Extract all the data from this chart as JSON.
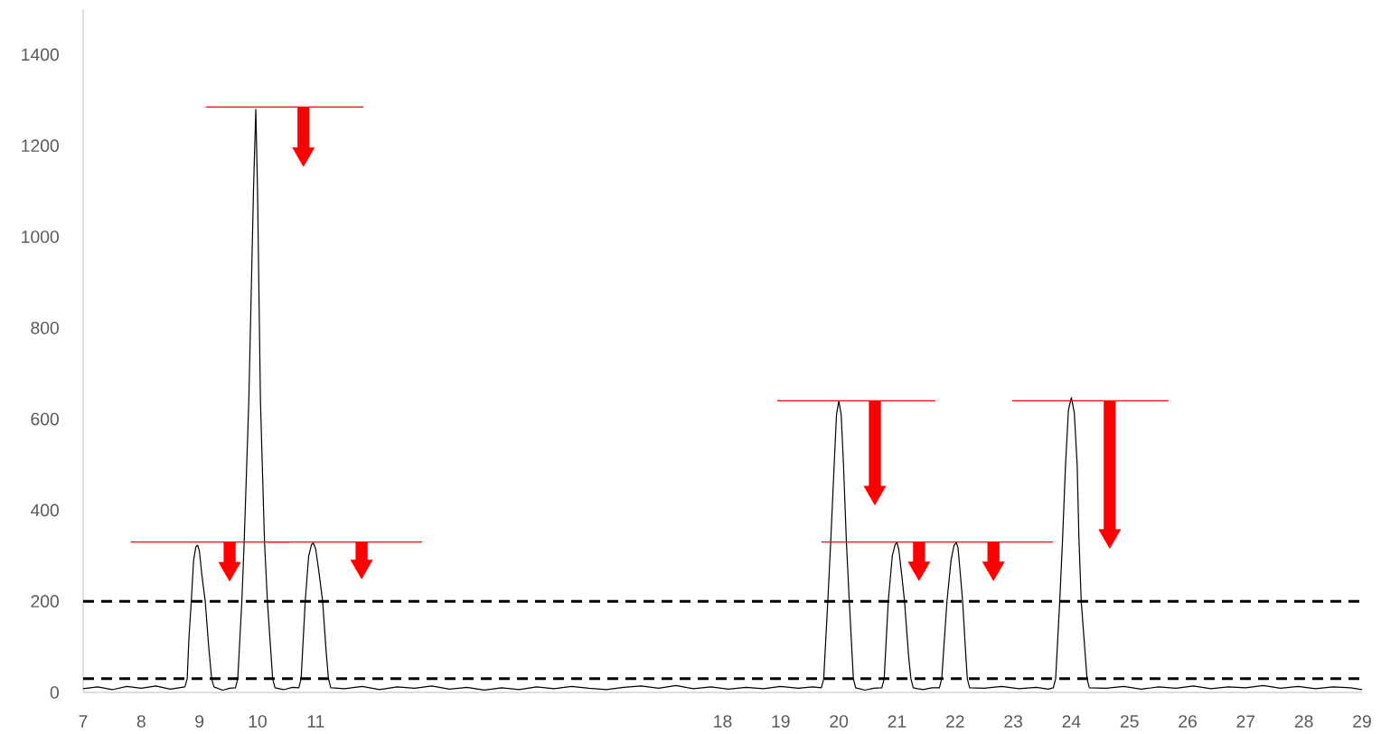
{
  "chart_data": {
    "type": "line",
    "xlim": [
      7,
      29
    ],
    "xticks": [
      7,
      8,
      9,
      10,
      11,
      18,
      19,
      20,
      21,
      22,
      23,
      24,
      25,
      26,
      27,
      28,
      29
    ],
    "ylim": [
      0,
      1500
    ],
    "yticks": [
      0,
      200,
      400,
      600,
      800,
      1000,
      1200,
      1400
    ],
    "marker": "none",
    "line_style": "solid",
    "ref_lines": [
      {
        "axis": "y",
        "value": 200,
        "color": "#000000",
        "line_style": "dashed"
      },
      {
        "axis": "y",
        "value": 30,
        "color": "#000000",
        "line_style": "dashed"
      }
    ],
    "series": [
      {
        "color": "#000000",
        "x": [
          7.0,
          7.25,
          7.5,
          7.75,
          8.0,
          8.25,
          8.5,
          8.75,
          8.79,
          8.82,
          8.86,
          8.9,
          8.94,
          8.97,
          9.0,
          9.04,
          9.1,
          9.16,
          9.21,
          9.25,
          9.4,
          9.52,
          9.62,
          9.66,
          9.73,
          9.77,
          9.85,
          9.93,
          9.97,
          10.0,
          10.05,
          10.12,
          10.17,
          10.26,
          10.3,
          10.45,
          10.6,
          10.71,
          10.75,
          10.82,
          10.88,
          10.93,
          10.96,
          11.0,
          11.05,
          11.12,
          11.18,
          11.22,
          11.26,
          11.5,
          11.8,
          12.1,
          12.4,
          12.7,
          13.0,
          13.3,
          13.6,
          13.9,
          14.2,
          14.5,
          14.8,
          15.1,
          15.4,
          15.7,
          16.0,
          16.3,
          16.6,
          16.9,
          17.2,
          17.5,
          17.8,
          18.1,
          18.4,
          18.7,
          19.0,
          19.3,
          19.55,
          19.7,
          19.74,
          19.81,
          19.86,
          19.92,
          19.96,
          20.0,
          20.04,
          20.08,
          20.13,
          20.18,
          20.25,
          20.29,
          20.45,
          20.6,
          20.74,
          20.78,
          20.85,
          20.92,
          20.97,
          21.0,
          21.03,
          21.08,
          21.13,
          21.2,
          21.24,
          21.28,
          21.45,
          21.6,
          21.73,
          21.77,
          21.86,
          21.93,
          21.98,
          22.02,
          22.05,
          22.09,
          22.13,
          22.18,
          22.21,
          22.25,
          22.5,
          22.8,
          23.1,
          23.4,
          23.6,
          23.69,
          23.73,
          23.8,
          23.85,
          23.9,
          23.95,
          24.0,
          24.05,
          24.1,
          24.13,
          24.17,
          24.27,
          24.31,
          24.6,
          24.9,
          25.2,
          25.5,
          25.8,
          26.1,
          26.4,
          26.7,
          27.0,
          27.3,
          27.6,
          27.9,
          28.2,
          28.5,
          28.8,
          29.0
        ],
        "values": [
          8,
          12,
          6,
          13,
          9,
          14,
          7,
          12,
          30,
          120,
          200,
          290,
          320,
          323,
          310,
          260,
          200,
          100,
          30,
          12,
          5,
          9,
          10,
          30,
          200,
          330,
          640,
          1100,
          1280,
          1100,
          640,
          330,
          200,
          30,
          10,
          6,
          11,
          10,
          30,
          200,
          300,
          325,
          328,
          315,
          270,
          200,
          90,
          30,
          10,
          8,
          13,
          6,
          12,
          9,
          14,
          7,
          11,
          5,
          10,
          6,
          12,
          8,
          13,
          9,
          6,
          11,
          14,
          9,
          15,
          8,
          12,
          7,
          11,
          8,
          13,
          9,
          12,
          10,
          30,
          200,
          330,
          500,
          610,
          640,
          610,
          500,
          330,
          200,
          30,
          10,
          5,
          9,
          10,
          30,
          200,
          300,
          325,
          329,
          315,
          260,
          200,
          80,
          30,
          10,
          6,
          10,
          10,
          30,
          200,
          290,
          322,
          329,
          318,
          260,
          200,
          90,
          30,
          10,
          9,
          13,
          8,
          11,
          7,
          10,
          30,
          200,
          340,
          500,
          620,
          647,
          615,
          500,
          340,
          200,
          30,
          10,
          9,
          13,
          7,
          12,
          9,
          14,
          8,
          12,
          10,
          15,
          9,
          13,
          8,
          12,
          10,
          6
        ]
      },
      {
        "color": "#ff0000",
        "x": [
          9.11,
          11.82
        ],
        "values": [
          1285,
          1285
        ]
      },
      {
        "color": "#ff0000",
        "x": [
          7.82,
          10.54
        ],
        "values": [
          330,
          330
        ]
      },
      {
        "color": "#ff0000",
        "x": [
          10.16,
          12.83
        ],
        "values": [
          330,
          330
        ]
      },
      {
        "color": "#ff0000",
        "x": [
          18.94,
          21.66
        ],
        "values": [
          640,
          640
        ]
      },
      {
        "color": "#ff0000",
        "x": [
          19.7,
          23.68
        ],
        "values": [
          330,
          330
        ]
      },
      {
        "color": "#ff0000",
        "x": [
          22.98,
          25.67
        ],
        "values": [
          640,
          640
        ]
      },
      {
        "type": "scatter",
        "color": "#ff0000",
        "marker": "triangle",
        "x": [
          10.79,
          9.52,
          11.79,
          20.62,
          21.38,
          22.66,
          24.66
        ],
        "values": [
          1175,
          265,
          270,
          432,
          266,
          266,
          337
        ],
        "errors": [
          [
            1175,
            1285
          ],
          [
            265,
            330
          ],
          [
            270,
            330
          ],
          [
            432,
            640
          ],
          [
            266,
            330
          ],
          [
            266,
            330
          ],
          [
            337,
            640
          ]
        ]
      }
    ]
  }
}
